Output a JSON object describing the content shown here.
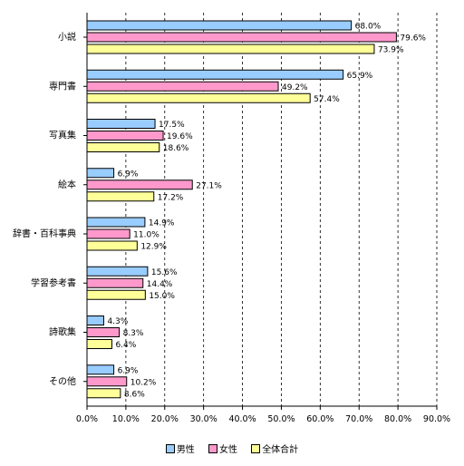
{
  "chart_data": {
    "type": "bar",
    "orientation": "horizontal",
    "categories": [
      "小説",
      "専門書",
      "写真集",
      "絵本",
      "辞書・百科事典",
      "学習参考書",
      "詩歌集",
      "その他"
    ],
    "series": [
      {
        "name": "男性",
        "values": [
          68.0,
          65.9,
          17.5,
          6.9,
          14.9,
          15.6,
          4.3,
          6.9
        ],
        "color": "#99ccff"
      },
      {
        "name": "女性",
        "values": [
          79.6,
          49.2,
          19.6,
          27.1,
          11.0,
          14.4,
          8.3,
          10.2
        ],
        "color": "#ff99cc"
      },
      {
        "name": "全体合計",
        "values": [
          73.9,
          57.4,
          18.6,
          17.2,
          12.9,
          15.0,
          6.4,
          8.6
        ],
        "color": "#ffff99"
      }
    ],
    "value_labels": [
      [
        "68.0%",
        "65.9%",
        "17.5%",
        "6.9%",
        "14.9%",
        "15.6%",
        "4.3%",
        "6.9%"
      ],
      [
        "79.6%",
        "49.2%",
        "19.6%",
        "27.1%",
        "11.0%",
        "14.4%",
        "8.3%",
        "10.2%"
      ],
      [
        "73.9%",
        "57.4%",
        "18.6%",
        "17.2%",
        "12.9%",
        "15.0%",
        "6.4%",
        "8.6%"
      ]
    ],
    "xlim": [
      0,
      90
    ],
    "x_ticks": [
      0,
      10,
      20,
      30,
      40,
      50,
      60,
      70,
      80,
      90
    ],
    "x_tick_labels": [
      "0.0%",
      "10.0%",
      "20.0%",
      "30.0%",
      "40.0%",
      "50.0%",
      "60.0%",
      "70.0%",
      "80.0%",
      "90.0%"
    ],
    "grid": "vertical-dashed",
    "legend_position": "bottom"
  }
}
